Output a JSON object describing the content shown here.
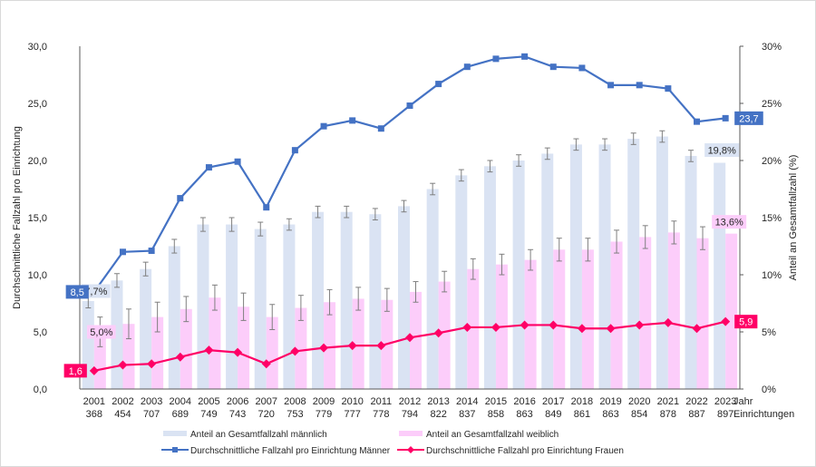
{
  "chart_data": {
    "type": "bar+line",
    "title": "",
    "categories": [
      "2001",
      "2002",
      "2003",
      "2004",
      "2005",
      "2006",
      "2007",
      "2008",
      "2009",
      "2010",
      "2011",
      "2012",
      "2013",
      "2014",
      "2015",
      "2016",
      "2017",
      "2018",
      "2019",
      "2020",
      "2021",
      "2022",
      "2023"
    ],
    "sub_categories": [
      "368",
      "454",
      "707",
      "689",
      "749",
      "743",
      "720",
      "753",
      "779",
      "777",
      "778",
      "794",
      "822",
      "837",
      "858",
      "863",
      "849",
      "861",
      "863",
      "854",
      "878",
      "887",
      "897"
    ],
    "x_extra_labels": [
      "Jahr",
      "Einrichtungen"
    ],
    "ylabel_left": "Durchschnittliche Fallzahl pro Einrichtung",
    "ylabel_right": "Anteil an Gesamtfallzahl (%)",
    "ylim_left": [
      0,
      30
    ],
    "ylim_right": [
      0,
      30
    ],
    "yticks_left": [
      "0,0",
      "5,0",
      "10,0",
      "15,0",
      "20,0",
      "25,0",
      "30,0"
    ],
    "yticks_right": [
      "0%",
      "5%",
      "10%",
      "15%",
      "20%",
      "25%",
      "30%"
    ],
    "grid": false,
    "legend_position": "bottom",
    "series": [
      {
        "name": "Anteil an Gesamtfallzahl männlich",
        "kind": "bar",
        "axis": "right",
        "color": "#dae3f3",
        "values": [
          7.7,
          9.5,
          10.5,
          12.5,
          14.4,
          14.4,
          14.0,
          14.4,
          15.5,
          15.5,
          15.3,
          16.0,
          17.5,
          18.7,
          19.5,
          20.0,
          20.6,
          21.4,
          21.4,
          21.9,
          22.1,
          20.4,
          19.8
        ],
        "error": [
          0.6,
          0.6,
          0.6,
          0.6,
          0.6,
          0.6,
          0.6,
          0.5,
          0.5,
          0.5,
          0.5,
          0.5,
          0.5,
          0.5,
          0.5,
          0.5,
          0.5,
          0.5,
          0.5,
          0.5,
          0.5,
          0.5,
          0
        ],
        "labels": {
          "0": "7,7%",
          "22": "19,8%"
        }
      },
      {
        "name": "Anteil an Gesamtfallzahl weiblich",
        "kind": "bar",
        "axis": "right",
        "color": "#fccdfa",
        "values": [
          5.0,
          5.7,
          6.3,
          7.0,
          8.0,
          7.2,
          6.3,
          7.1,
          7.6,
          7.9,
          7.8,
          8.5,
          9.4,
          10.5,
          10.9,
          11.3,
          12.2,
          12.2,
          12.9,
          13.3,
          13.7,
          13.2,
          13.6
        ],
        "error": [
          1.3,
          1.3,
          1.3,
          1.1,
          1.1,
          1.2,
          1.1,
          1.1,
          1.1,
          1.0,
          1.0,
          0.9,
          0.9,
          0.9,
          0.9,
          0.9,
          1.0,
          1.0,
          1.0,
          1.0,
          1.0,
          1.0,
          0
        ],
        "labels": {
          "0": "5,0%",
          "22": "13,6%"
        }
      },
      {
        "name": "Durchschnittliche Fallzahl pro Einrichtung Männer",
        "kind": "line",
        "axis": "left",
        "color": "#4472c4",
        "marker": "square",
        "values": [
          8.5,
          12.0,
          12.1,
          16.7,
          19.4,
          19.9,
          15.9,
          20.9,
          23.0,
          23.5,
          22.8,
          24.8,
          26.7,
          28.2,
          28.9,
          29.1,
          28.2,
          28.1,
          26.6,
          26.6,
          26.3,
          23.4,
          23.7
        ],
        "labels": {
          "0": "8,5",
          "22": "23,7"
        }
      },
      {
        "name": "Durchschnittliche Fallzahl pro Einrichtung Frauen",
        "kind": "line",
        "axis": "left",
        "color": "#ff0066",
        "marker": "diamond",
        "values": [
          1.6,
          2.1,
          2.2,
          2.8,
          3.4,
          3.2,
          2.2,
          3.3,
          3.6,
          3.8,
          3.8,
          4.5,
          4.9,
          5.4,
          5.4,
          5.6,
          5.6,
          5.3,
          5.3,
          5.6,
          5.8,
          5.3,
          5.9
        ],
        "labels": {
          "0": "1,6",
          "22": "5,9"
        }
      }
    ]
  }
}
